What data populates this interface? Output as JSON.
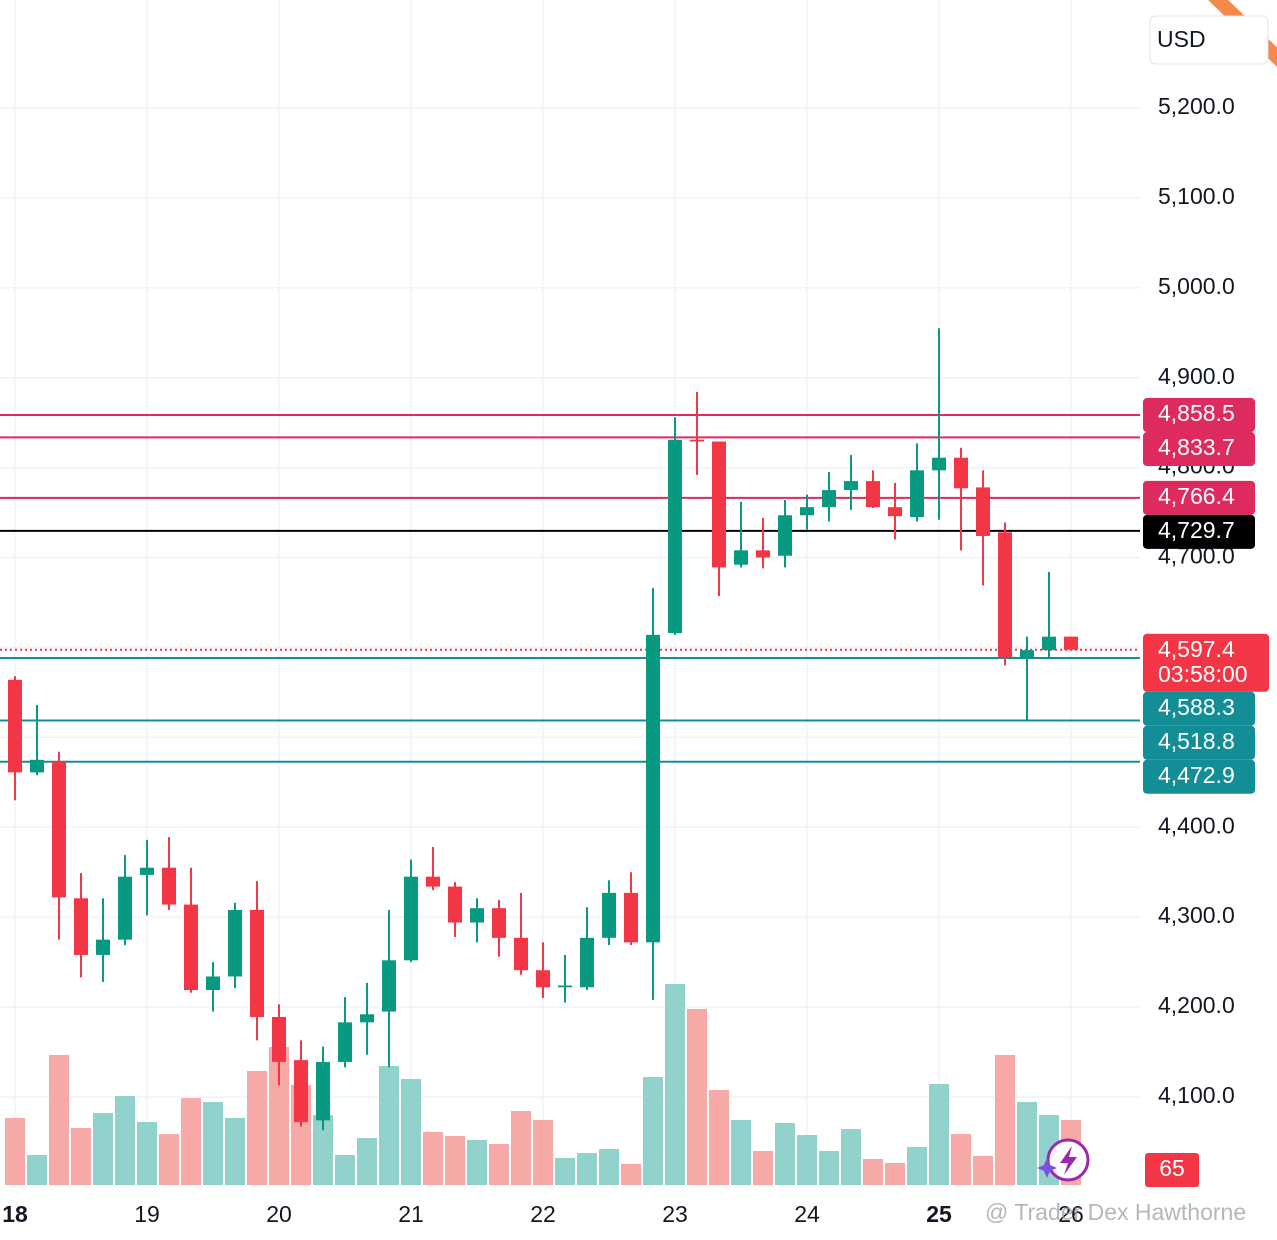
{
  "chart_data": {
    "type": "candlestick",
    "currency": "USD",
    "watermark": "@ Trader Dex Hawthorne",
    "ylim": [
      4002.1,
      5320.1
    ],
    "yticks": [
      {
        "value": 4100,
        "label": "4,100.0"
      },
      {
        "value": 4200,
        "label": "4,200.0"
      },
      {
        "value": 4300,
        "label": "4,300.0"
      },
      {
        "value": 4400,
        "label": "4,400.0"
      },
      {
        "value": 4500,
        "label": "4,500.0"
      },
      {
        "value": 4600,
        "label": "4,600.0"
      },
      {
        "value": 4700,
        "label": "4,700.0"
      },
      {
        "value": 4800,
        "label": "4,800.0"
      },
      {
        "value": 4900,
        "label": "4,900.0"
      },
      {
        "value": 5000,
        "label": "5,000.0"
      },
      {
        "value": 5100,
        "label": "5,100.0"
      },
      {
        "value": 5200,
        "label": "5,200.0"
      }
    ],
    "xticks": [
      {
        "value": 0,
        "label": "18"
      },
      {
        "value": 6,
        "label": "19"
      },
      {
        "value": 12,
        "label": "20"
      },
      {
        "value": 18,
        "label": "21"
      },
      {
        "value": 24,
        "label": "22"
      },
      {
        "value": 30,
        "label": "23"
      },
      {
        "value": 36,
        "label": "24"
      },
      {
        "value": 42,
        "label": "25"
      },
      {
        "value": 48,
        "label": "26"
      }
    ],
    "grid": true,
    "up_color": "#089981",
    "down_color": "#f23645",
    "volume_up_color": "#92d2cc",
    "volume_down_color": "#f7a9a7",
    "open": [
      4564,
      4461,
      4473,
      4321,
      4258,
      4275,
      4347,
      4355,
      4314,
      4219,
      4234,
      4308,
      4189,
      4141,
      4074,
      4139,
      4183,
      4195,
      4252,
      4345,
      4334,
      4294,
      4310,
      4277,
      4241,
      4222,
      4222,
      4277,
      4327,
      4272,
      4616,
      4831,
      4829,
      4692,
      4708,
      4702,
      4747,
      4756,
      4775,
      4785,
      4756,
      4745,
      4797,
      4811,
      4778,
      4728,
      4589,
      4597,
      4612
    ],
    "high": [
      4568,
      4536,
      4484,
      4349,
      4321,
      4369,
      4386,
      4389,
      4355,
      4250,
      4316,
      4340,
      4203,
      4163,
      4156,
      4211,
      4227,
      4308,
      4364,
      4378,
      4339,
      4321,
      4319,
      4327,
      4272,
      4258,
      4311,
      4341,
      4350,
      4666,
      4856,
      4884,
      4829,
      4762,
      4744,
      4764,
      4770,
      4795,
      4814,
      4797,
      4783,
      4827,
      4955,
      4822,
      4797,
      4739,
      4612,
      4684,
      4612
    ],
    "low": [
      4430,
      4458,
      4275,
      4233,
      4228,
      4269,
      4302,
      4308,
      4216,
      4195,
      4221,
      4163,
      4113,
      4067,
      4063,
      4133,
      4147,
      4133,
      4250,
      4330,
      4278,
      4272,
      4256,
      4236,
      4210,
      4205,
      4219,
      4269,
      4269,
      4208,
      4614,
      4792,
      4657,
      4689,
      4688,
      4689,
      4731,
      4740,
      4753,
      4755,
      4720,
      4740,
      4742,
      4708,
      4669,
      4580,
      4519,
      4589,
      4597
    ],
    "close": [
      4461,
      4475,
      4322,
      4258,
      4275,
      4345,
      4355,
      4314,
      4219,
      4234,
      4308,
      4189,
      4139,
      4072,
      4139,
      4183,
      4192,
      4252,
      4345,
      4334,
      4294,
      4310,
      4277,
      4241,
      4222,
      4224,
      4277,
      4327,
      4272,
      4614,
      4831,
      4829,
      4689,
      4708,
      4700,
      4747,
      4756,
      4775,
      4785,
      4756,
      4746,
      4797,
      4811,
      4777,
      4724,
      4589,
      4597,
      4612,
      4597.4
    ],
    "volume": [
      67,
      30,
      130,
      57,
      72,
      89,
      63,
      51,
      87,
      83,
      67,
      114,
      138,
      100,
      70,
      30,
      47,
      119,
      106,
      53,
      49,
      45,
      41,
      74,
      65,
      27,
      32,
      36,
      21,
      108,
      201,
      176,
      95,
      65,
      34,
      62,
      50,
      34,
      56,
      26,
      22,
      38,
      101,
      51,
      29,
      130,
      83,
      70,
      65
    ],
    "levels": [
      {
        "value": 4858.5,
        "label": "4,858.5",
        "color": "#dd2a5f"
      },
      {
        "value": 4833.7,
        "label": "4,833.7",
        "color": "#dd2a5f"
      },
      {
        "value": 4766.4,
        "label": "4,766.4",
        "color": "#dd2a5f"
      },
      {
        "value": 4729.7,
        "label": "4,729.7",
        "color": "#000000"
      },
      {
        "value": 4597.4,
        "label": "4,597.4",
        "countdown": "03:58:00",
        "color": "#f23645",
        "style": "dotted"
      },
      {
        "value": 4588.3,
        "label": "4,588.3",
        "color": "#138d96"
      },
      {
        "value": 4518.8,
        "label": "4,518.8",
        "color": "#138d96"
      },
      {
        "value": 4472.9,
        "label": "4,472.9",
        "color": "#138d96"
      }
    ]
  }
}
